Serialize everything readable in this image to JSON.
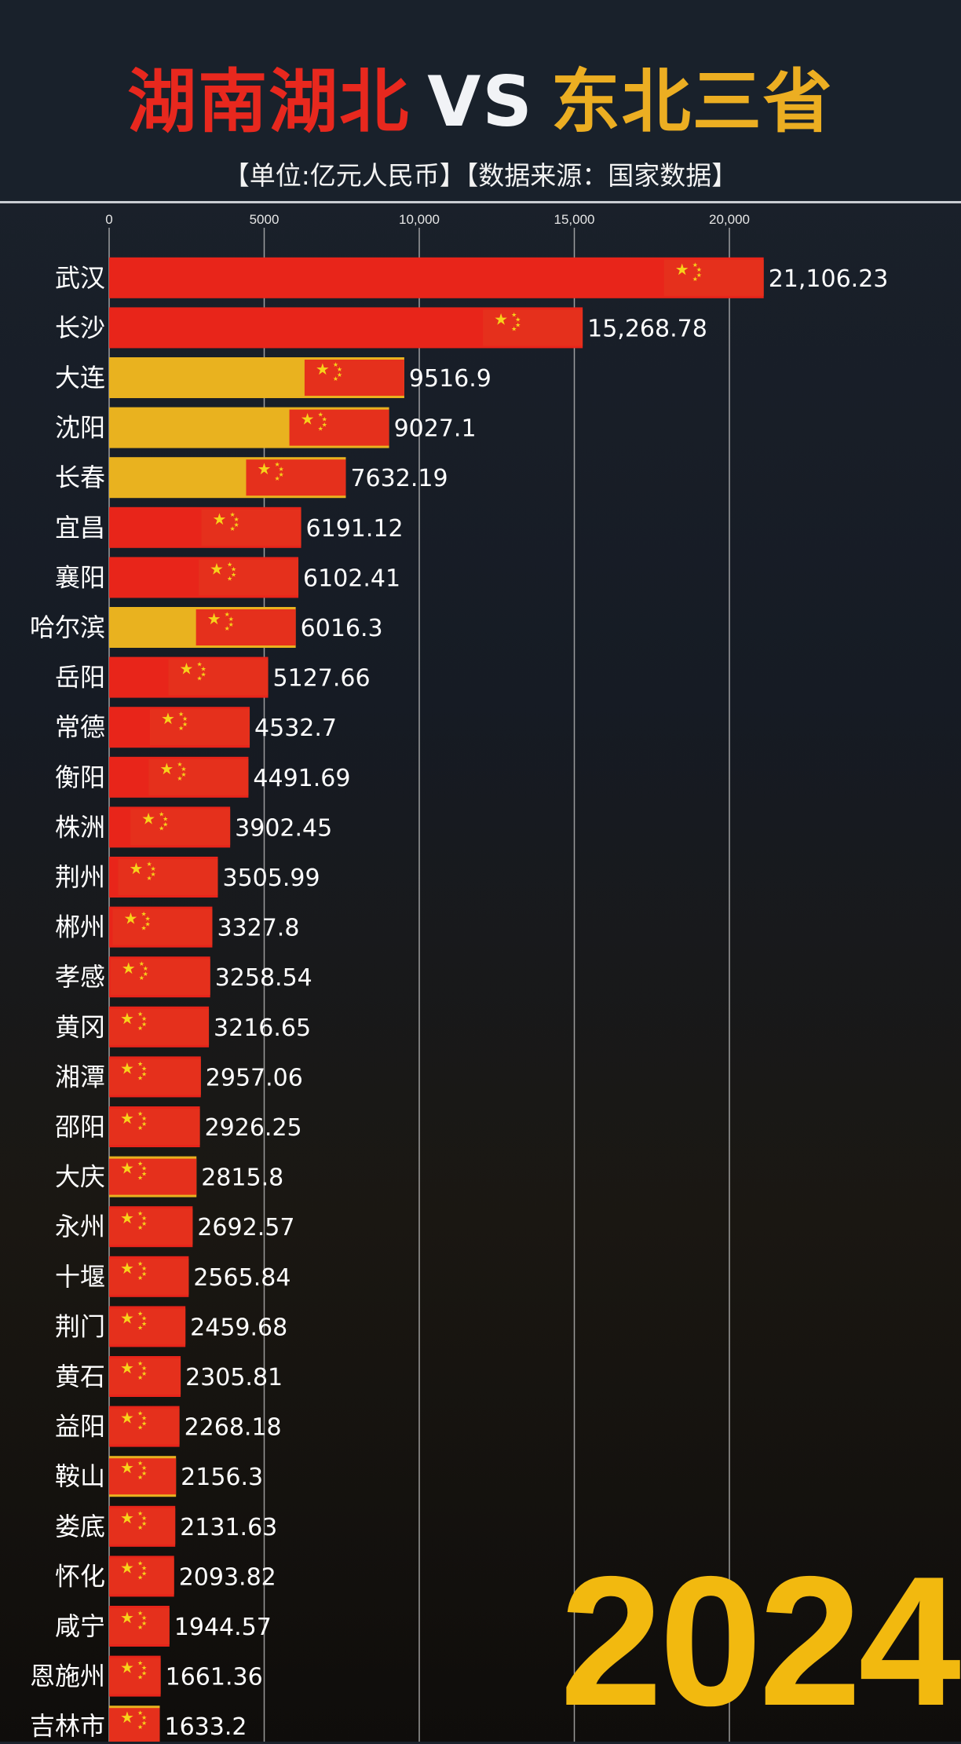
{
  "header": {
    "title_part1": "湖南湖北",
    "title_vs": "VS",
    "title_part2": "东北三省",
    "subtitle": "【单位:亿元人民币】【数据来源：国家数据】"
  },
  "year": "2024",
  "colors": {
    "hunan_hubei": "#e8251a",
    "northeast": "#e9b21f",
    "flag": "#e5301c",
    "star": "#f7d21a"
  },
  "chart_data": {
    "type": "bar",
    "orientation": "horizontal",
    "title": "湖南湖北VS东北三省",
    "xlim": [
      0,
      21500
    ],
    "xticks": [
      0,
      5000,
      10000,
      15000,
      20000
    ],
    "xtick_labels": [
      "0",
      "5000",
      "10,000",
      "15,000",
      "20,000"
    ],
    "grid": true,
    "categories": [
      "武汉",
      "长沙",
      "大连",
      "沈阳",
      "长春",
      "宜昌",
      "襄阳",
      "哈尔滨",
      "岳阳",
      "常德",
      "衡阳",
      "株洲",
      "荆州",
      "郴州",
      "孝感",
      "黄冈",
      "湘潭",
      "邵阳",
      "大庆",
      "永州",
      "十堰",
      "荆门",
      "黄石",
      "益阳",
      "鞍山",
      "娄底",
      "怀化",
      "咸宁",
      "恩施州",
      "吉林市"
    ],
    "values": [
      21106.23,
      15268.78,
      9516.9,
      9027.1,
      7632.19,
      6191.12,
      6102.41,
      6016.3,
      5127.66,
      4532.7,
      4491.69,
      3902.45,
      3505.99,
      3327.8,
      3258.54,
      3216.65,
      2957.06,
      2926.25,
      2815.8,
      2692.57,
      2565.84,
      2459.68,
      2305.81,
      2268.18,
      2156.3,
      2131.63,
      2093.82,
      1944.57,
      1661.36,
      1633.2
    ],
    "value_labels": [
      "21,106.23",
      "15,268.78",
      "9516.9",
      "9027.1",
      "7632.19",
      "6191.12",
      "6102.41",
      "6016.3",
      "5127.66",
      "4532.7",
      "4491.69",
      "3902.45",
      "3505.99",
      "3327.8",
      "3258.54",
      "3216.65",
      "2957.06",
      "2926.25",
      "2815.8",
      "2692.57",
      "2565.84",
      "2459.68",
      "2305.81",
      "2268.18",
      "2156.3",
      "2131.63",
      "2093.82",
      "1944.57",
      "1661.36",
      "1633.2"
    ],
    "groups": [
      "hunan_hubei",
      "hunan_hubei",
      "northeast",
      "northeast",
      "northeast",
      "hunan_hubei",
      "hunan_hubei",
      "northeast",
      "hunan_hubei",
      "hunan_hubei",
      "hunan_hubei",
      "hunan_hubei",
      "hunan_hubei",
      "hunan_hubei",
      "hunan_hubei",
      "hunan_hubei",
      "hunan_hubei",
      "hunan_hubei",
      "northeast",
      "hunan_hubei",
      "hunan_hubei",
      "hunan_hubei",
      "hunan_hubei",
      "hunan_hubei",
      "northeast",
      "hunan_hubei",
      "hunan_hubei",
      "hunan_hubei",
      "hunan_hubei",
      "northeast"
    ]
  }
}
